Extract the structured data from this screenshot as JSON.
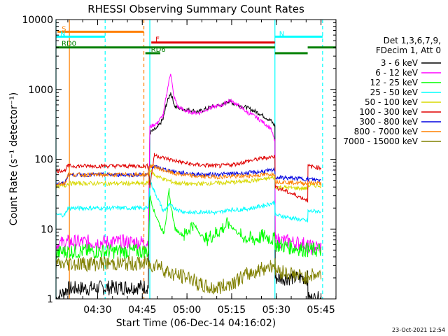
{
  "chart_data": {
    "type": "line",
    "title": "RHESSI Observing Summary Count Rates",
    "xlabel": "Start Time (06-Dec-14 04:16:02)",
    "ylabel": "Count Rate (s⁻¹ detector⁻¹)",
    "yscale": "log",
    "ylim": [
      1,
      10000
    ],
    "xlim_minutes": [
      0,
      94
    ],
    "y_ticks": [
      "1",
      "10",
      "100",
      "1000",
      "10000"
    ],
    "x_ticks": [
      {
        "label": "04:30",
        "t": 13.97
      },
      {
        "label": "04:45",
        "t": 28.97
      },
      {
        "label": "05:00",
        "t": 43.97
      },
      {
        "label": "05:15",
        "t": 58.97
      },
      {
        "label": "05:30",
        "t": 73.97
      },
      {
        "label": "05:45",
        "t": 88.97
      }
    ],
    "legend": {
      "header": [
        "Det 1,3,6,7,9,",
        "FDecim 1, Att 0"
      ],
      "entries": [
        {
          "label": "3 - 6 keV",
          "color": "#000000"
        },
        {
          "label": "6 - 12 keV",
          "color": "#ff00ff"
        },
        {
          "label": "12 - 25 keV",
          "color": "#00ff00"
        },
        {
          "label": "25 - 50 keV",
          "color": "#00ffff"
        },
        {
          "label": "50 - 100 keV",
          "color": "#d8d800"
        },
        {
          "label": "100 - 300 keV",
          "color": "#e00000"
        },
        {
          "label": "300 - 800 keV",
          "color": "#0000e0"
        },
        {
          "label": "800 - 7000 keV",
          "color": "#ff8000"
        },
        {
          "label": "7000 - 15000 keV",
          "color": "#808000"
        }
      ]
    },
    "flags": [
      {
        "label": "S",
        "color": "#ff8000",
        "y": 6700,
        "start": 0.5,
        "end": 29.5
      },
      {
        "label": "N",
        "color": "#00ffff",
        "y": 5700,
        "start": 0,
        "end": 16.5
      },
      {
        "label": "N",
        "color": "#00ffff",
        "y": 5700,
        "start": 73.5,
        "end": 89.5
      },
      {
        "label": "F",
        "color": "#e00000",
        "y": 4700,
        "start": 32,
        "end": 73.5
      },
      {
        "label": "RD0",
        "color": "#008000",
        "y": 4000,
        "start": 0,
        "end": 73.5
      },
      {
        "label": "",
        "color": "#008000",
        "y": 4000,
        "start": 84.5,
        "end": 94
      },
      {
        "label": "RD6",
        "color": "#008000",
        "y": 3300,
        "start": 30,
        "end": 35
      },
      {
        "label": "",
        "color": "#008000",
        "y": 3300,
        "start": 73.5,
        "end": 84.5
      }
    ],
    "vlines": [
      {
        "t": 0,
        "color": "#00ffff",
        "style": "solid"
      },
      {
        "t": 4.5,
        "color": "#ff8000",
        "style": "solid"
      },
      {
        "t": 16.5,
        "color": "#00ffff",
        "style": "dashed"
      },
      {
        "t": 29.5,
        "color": "#ff8000",
        "style": "dashed"
      },
      {
        "t": 31.5,
        "color": "#00ffff",
        "style": "solid"
      },
      {
        "t": 73.5,
        "color": "#00ffff",
        "style": "solid"
      },
      {
        "t": 89.5,
        "color": "#00ffff",
        "style": "dashed"
      }
    ],
    "series": [
      {
        "name": "3 - 6 keV",
        "color": "#000000",
        "points": [
          [
            0,
            1
          ],
          [
            4,
            1.4
          ],
          [
            31,
            1.5
          ],
          [
            31.5,
            240
          ],
          [
            34,
            280
          ],
          [
            36,
            380
          ],
          [
            37,
            600
          ],
          [
            38.5,
            900
          ],
          [
            40,
            560
          ],
          [
            43,
            520
          ],
          [
            48,
            480
          ],
          [
            52,
            560
          ],
          [
            56,
            600
          ],
          [
            58,
            680
          ],
          [
            60,
            620
          ],
          [
            64,
            550
          ],
          [
            68,
            460
          ],
          [
            72,
            360
          ],
          [
            73.5,
            300
          ],
          [
            73.6,
            2
          ],
          [
            84.5,
            2
          ],
          [
            84.6,
            1
          ],
          [
            89,
            1
          ]
        ]
      },
      {
        "name": "6 - 12 keV",
        "color": "#ff00ff",
        "points": [
          [
            0,
            6
          ],
          [
            4,
            6.5
          ],
          [
            31,
            6.5
          ],
          [
            31.5,
            290
          ],
          [
            34,
            330
          ],
          [
            36,
            430
          ],
          [
            37,
            800
          ],
          [
            38.5,
            1750
          ],
          [
            39.5,
            800
          ],
          [
            41,
            560
          ],
          [
            44,
            480
          ],
          [
            48,
            460
          ],
          [
            52,
            550
          ],
          [
            56,
            600
          ],
          [
            58,
            700
          ],
          [
            60,
            640
          ],
          [
            64,
            480
          ],
          [
            68,
            380
          ],
          [
            72,
            280
          ],
          [
            73.5,
            180
          ],
          [
            73.6,
            7
          ],
          [
            84.5,
            6
          ],
          [
            84.6,
            5.5
          ],
          [
            89,
            5.5
          ]
        ]
      },
      {
        "name": "12 - 25 keV",
        "color": "#00ff00",
        "points": [
          [
            0,
            4.5
          ],
          [
            4,
            4.8
          ],
          [
            31,
            4.8
          ],
          [
            31.5,
            30
          ],
          [
            33,
            18
          ],
          [
            35,
            11
          ],
          [
            36,
            9
          ],
          [
            38,
            30
          ],
          [
            40,
            10
          ],
          [
            43,
            8
          ],
          [
            46,
            12
          ],
          [
            50,
            7
          ],
          [
            54,
            9
          ],
          [
            58,
            12
          ],
          [
            62,
            8
          ],
          [
            66,
            7
          ],
          [
            70,
            8
          ],
          [
            73.5,
            7
          ],
          [
            73.6,
            6
          ],
          [
            84.5,
            5
          ],
          [
            84.6,
            5
          ],
          [
            89,
            5
          ]
        ]
      },
      {
        "name": "25 - 50 keV",
        "color": "#00ffff",
        "points": [
          [
            0,
            16
          ],
          [
            3,
            16
          ],
          [
            4,
            20
          ],
          [
            31,
            20
          ],
          [
            31.5,
            50
          ],
          [
            33,
            35
          ],
          [
            35,
            23
          ],
          [
            36,
            18
          ],
          [
            38,
            22
          ],
          [
            42,
            18
          ],
          [
            46,
            17
          ],
          [
            50,
            18
          ],
          [
            54,
            17
          ],
          [
            58,
            19
          ],
          [
            62,
            19
          ],
          [
            66,
            20
          ],
          [
            70,
            22
          ],
          [
            73.5,
            24
          ],
          [
            73.6,
            16
          ],
          [
            84.5,
            13
          ],
          [
            84.6,
            18
          ],
          [
            89,
            18
          ]
        ]
      },
      {
        "name": "50 - 100 keV",
        "color": "#d8d800",
        "points": [
          [
            0,
            40
          ],
          [
            3,
            42
          ],
          [
            4,
            45
          ],
          [
            31,
            45
          ],
          [
            31.5,
            70
          ],
          [
            33,
            60
          ],
          [
            36,
            52
          ],
          [
            40,
            46
          ],
          [
            45,
            44
          ],
          [
            50,
            45
          ],
          [
            55,
            46
          ],
          [
            60,
            47
          ],
          [
            65,
            49
          ],
          [
            70,
            52
          ],
          [
            73.5,
            55
          ],
          [
            73.6,
            40
          ],
          [
            84.5,
            38
          ],
          [
            84.6,
            42
          ],
          [
            89,
            42
          ]
        ]
      },
      {
        "name": "100 - 300 keV",
        "color": "#e00000",
        "points": [
          [
            0,
            68
          ],
          [
            3,
            70
          ],
          [
            4,
            80
          ],
          [
            31,
            80
          ],
          [
            31.5,
            40
          ],
          [
            33,
            115
          ],
          [
            36,
            105
          ],
          [
            40,
            95
          ],
          [
            45,
            85
          ],
          [
            50,
            82
          ],
          [
            55,
            80
          ],
          [
            60,
            85
          ],
          [
            65,
            95
          ],
          [
            70,
            105
          ],
          [
            73.5,
            110
          ],
          [
            73.6,
            40
          ],
          [
            84.5,
            26
          ],
          [
            84.6,
            80
          ],
          [
            89,
            75
          ]
        ]
      },
      {
        "name": "300 - 800 keV",
        "color": "#0000e0",
        "points": [
          [
            0,
            45
          ],
          [
            3,
            45
          ],
          [
            4,
            60
          ],
          [
            31,
            60
          ],
          [
            31.5,
            80
          ],
          [
            33,
            78
          ],
          [
            36,
            72
          ],
          [
            40,
            66
          ],
          [
            45,
            62
          ],
          [
            50,
            60
          ],
          [
            55,
            61
          ],
          [
            60,
            62
          ],
          [
            65,
            64
          ],
          [
            70,
            67
          ],
          [
            73.5,
            70
          ],
          [
            73.6,
            55
          ],
          [
            84.5,
            52
          ],
          [
            84.6,
            52
          ],
          [
            89,
            50
          ]
        ]
      },
      {
        "name": "800 - 7000 keV",
        "color": "#ff8000",
        "points": [
          [
            0,
            45
          ],
          [
            3,
            45
          ],
          [
            4,
            60
          ],
          [
            31,
            60
          ],
          [
            31.5,
            80
          ],
          [
            33,
            78
          ],
          [
            36,
            70
          ],
          [
            40,
            62
          ],
          [
            45,
            58
          ],
          [
            50,
            56
          ],
          [
            55,
            56
          ],
          [
            60,
            57
          ],
          [
            65,
            58
          ],
          [
            70,
            60
          ],
          [
            73.5,
            62
          ],
          [
            73.6,
            48
          ],
          [
            84.5,
            45
          ],
          [
            84.6,
            46
          ],
          [
            89,
            45
          ]
        ]
      },
      {
        "name": "7000 - 15000 keV",
        "color": "#808000",
        "points": [
          [
            0,
            3
          ],
          [
            4,
            3.2
          ],
          [
            31,
            3.2
          ],
          [
            31.5,
            3
          ],
          [
            34,
            3.2
          ],
          [
            37,
            2.5
          ],
          [
            40,
            2.2
          ],
          [
            45,
            2
          ],
          [
            48,
            1.6
          ],
          [
            52,
            1.4
          ],
          [
            56,
            1.5
          ],
          [
            60,
            1.8
          ],
          [
            64,
            2.2
          ],
          [
            68,
            2.6
          ],
          [
            72,
            3
          ],
          [
            73.5,
            3.2
          ],
          [
            73.6,
            2.6
          ],
          [
            84.5,
            2
          ],
          [
            84.6,
            2.2
          ],
          [
            89,
            2.2
          ]
        ]
      }
    ]
  },
  "timestamp": "23-Oct-2021 12:54"
}
